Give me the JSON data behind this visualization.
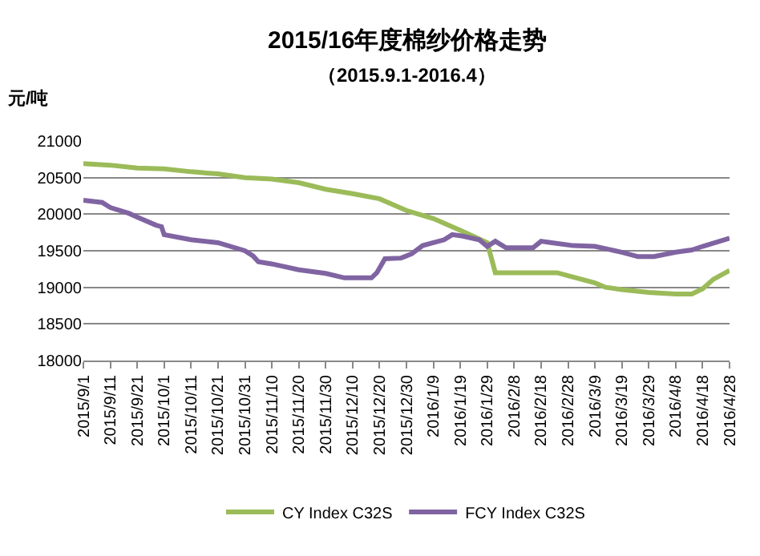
{
  "chart_data": {
    "type": "line",
    "title": "2015/16年度棉纱价格走势",
    "subtitle": "（2015.9.1-2016.4）",
    "ylabel": "元/吨",
    "series": [
      {
        "name": "CY Index C32S",
        "color": "#9bbb59",
        "x": [
          "2015-09-01",
          "2015-09-11",
          "2015-09-21",
          "2015-10-01",
          "2015-10-11",
          "2015-10-21",
          "2015-10-31",
          "2015-11-10",
          "2015-11-20",
          "2015-11-30",
          "2015-12-10",
          "2015-12-20",
          "2015-12-30",
          "2016-01-09",
          "2016-01-19",
          "2016-01-29",
          "2016-02-01",
          "2016-02-24",
          "2016-02-28",
          "2016-03-09",
          "2016-03-13",
          "2016-03-19",
          "2016-03-29",
          "2016-04-08",
          "2016-04-14",
          "2016-04-18",
          "2016-04-22",
          "2016-04-28"
        ],
        "values": [
          20690,
          20670,
          20630,
          20620,
          20580,
          20550,
          20500,
          20480,
          20430,
          20340,
          20280,
          20210,
          20050,
          19940,
          19780,
          19610,
          19200,
          19200,
          19160,
          19060,
          19000,
          18970,
          18930,
          18910,
          18910,
          18980,
          19110,
          19230
        ]
      },
      {
        "name": "FCY Index C32S",
        "color": "#8064a2",
        "x": [
          "2015-09-01",
          "2015-09-08",
          "2015-09-11",
          "2015-09-18",
          "2015-09-21",
          "2015-09-28",
          "2015-09-30",
          "2015-10-01",
          "2015-10-11",
          "2015-10-21",
          "2015-10-31",
          "2015-11-03",
          "2015-11-05",
          "2015-11-10",
          "2015-11-20",
          "2015-11-30",
          "2015-12-07",
          "2015-12-17",
          "2015-12-19",
          "2015-12-22",
          "2015-12-28",
          "2016-01-01",
          "2016-01-05",
          "2016-01-09",
          "2016-01-13",
          "2016-01-16",
          "2016-01-20",
          "2016-01-26",
          "2016-01-29",
          "2016-02-01",
          "2016-02-05",
          "2016-02-15",
          "2016-02-18",
          "2016-02-22",
          "2016-03-01",
          "2016-03-09",
          "2016-03-19",
          "2016-03-25",
          "2016-03-31",
          "2016-04-08",
          "2016-04-14",
          "2016-04-18",
          "2016-04-28"
        ],
        "values": [
          20190,
          20160,
          20090,
          20010,
          19960,
          19850,
          19830,
          19720,
          19650,
          19610,
          19500,
          19430,
          19350,
          19320,
          19240,
          19190,
          19130,
          19130,
          19200,
          19390,
          19400,
          19460,
          19570,
          19610,
          19650,
          19720,
          19700,
          19650,
          19560,
          19630,
          19540,
          19540,
          19630,
          19610,
          19570,
          19560,
          19480,
          19420,
          19420,
          19480,
          19510,
          19560,
          19670
        ]
      }
    ],
    "xlim": [
      "2015-09-01",
      "2016-04-28"
    ],
    "xticks": [
      {
        "value": "2015-09-01",
        "label": "2015/9/1"
      },
      {
        "value": "2015-09-11",
        "label": "2015/9/11"
      },
      {
        "value": "2015-09-21",
        "label": "2015/9/21"
      },
      {
        "value": "2015-10-01",
        "label": "2015/10/1"
      },
      {
        "value": "2015-10-11",
        "label": "2015/10/11"
      },
      {
        "value": "2015-10-21",
        "label": "2015/10/21"
      },
      {
        "value": "2015-10-31",
        "label": "2015/10/31"
      },
      {
        "value": "2015-11-10",
        "label": "2015/11/10"
      },
      {
        "value": "2015-11-20",
        "label": "2015/11/20"
      },
      {
        "value": "2015-11-30",
        "label": "2015/11/30"
      },
      {
        "value": "2015-12-10",
        "label": "2015/12/10"
      },
      {
        "value": "2015-12-20",
        "label": "2015/12/20"
      },
      {
        "value": "2015-12-30",
        "label": "2015/12/30"
      },
      {
        "value": "2016-01-09",
        "label": "2016/1/9"
      },
      {
        "value": "2016-01-19",
        "label": "2016/1/19"
      },
      {
        "value": "2016-01-29",
        "label": "2016/1/29"
      },
      {
        "value": "2016-02-08",
        "label": "2016/2/8"
      },
      {
        "value": "2016-02-18",
        "label": "2016/2/18"
      },
      {
        "value": "2016-02-28",
        "label": "2016/2/28"
      },
      {
        "value": "2016-03-09",
        "label": "2016/3/9"
      },
      {
        "value": "2016-03-19",
        "label": "2016/3/19"
      },
      {
        "value": "2016-03-29",
        "label": "2016/3/29"
      },
      {
        "value": "2016-04-08",
        "label": "2016/4/8"
      },
      {
        "value": "2016-04-18",
        "label": "2016/4/18"
      },
      {
        "value": "2016-04-28",
        "label": "2016/4/28"
      }
    ],
    "ylim": [
      18000,
      21000
    ],
    "yticks": [
      18000,
      18500,
      19000,
      19500,
      20000,
      20500,
      21000
    ],
    "grid": "y",
    "legend": "bottom",
    "marker": "none",
    "line_style": "solid"
  }
}
